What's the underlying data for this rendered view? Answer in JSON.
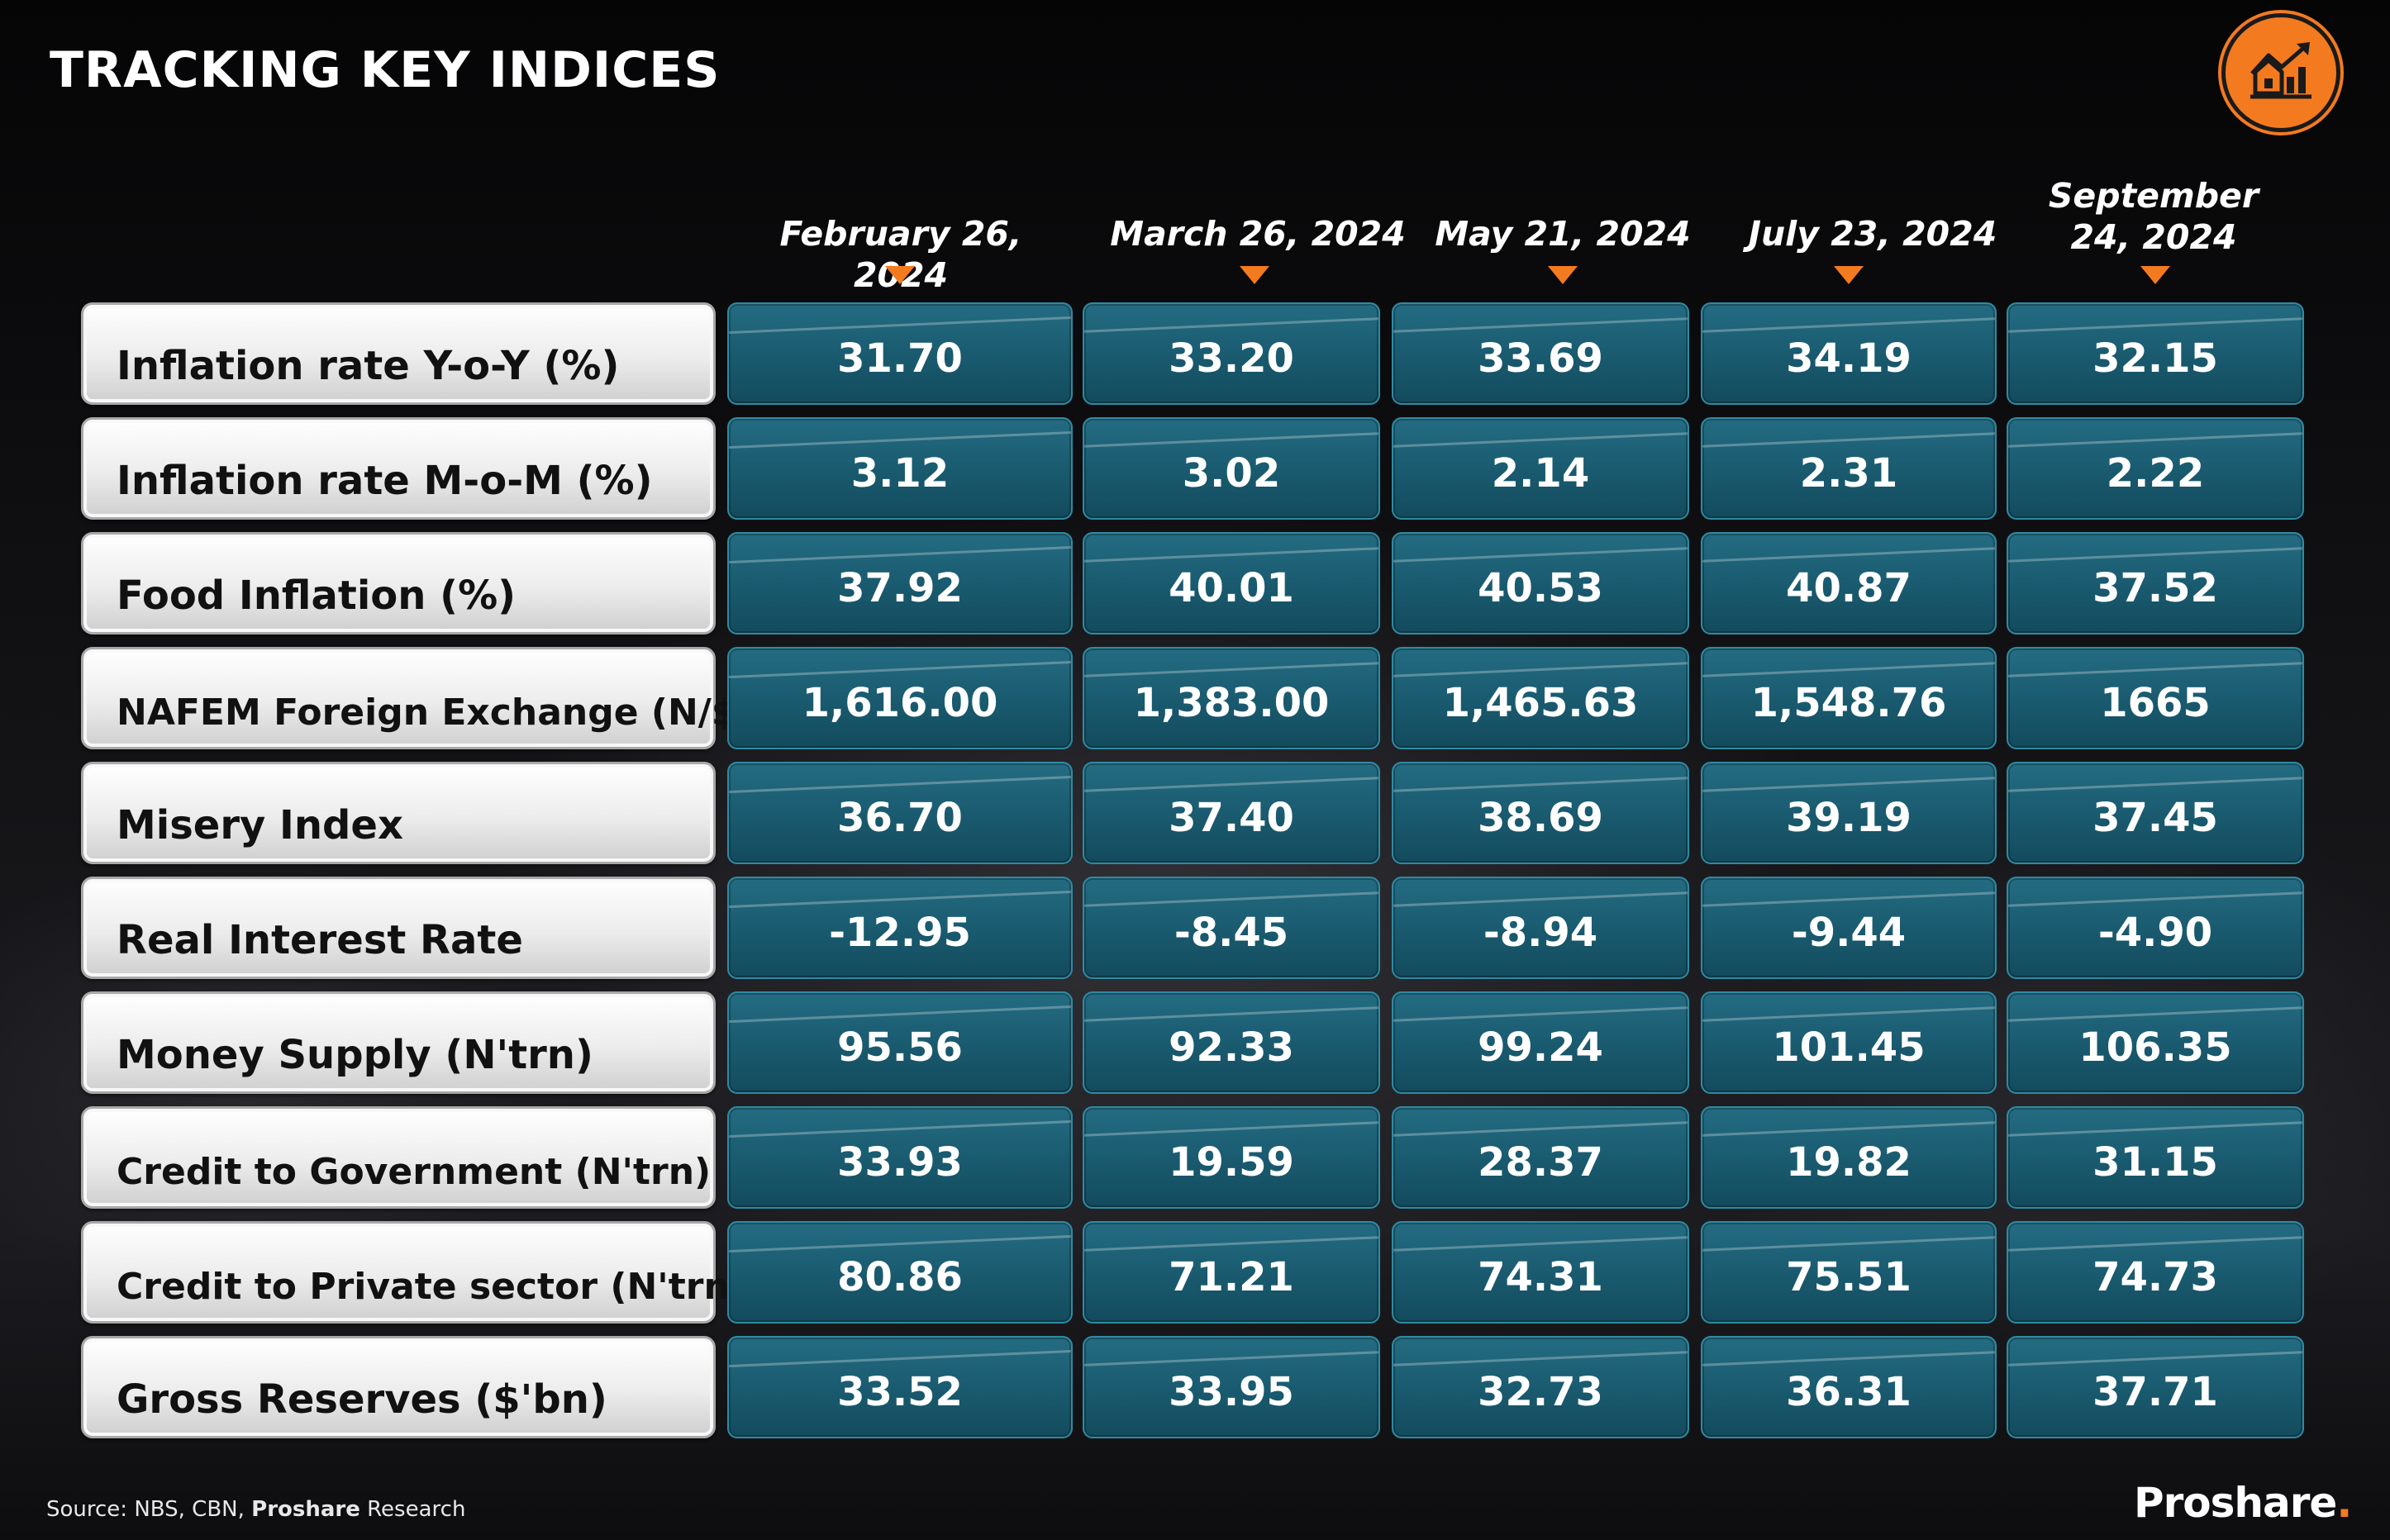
{
  "header": {
    "title": "TRACKING KEY INDICES",
    "logo_icon": "house-growth-chart-icon",
    "accent_color": "#f47a20"
  },
  "table": {
    "columns": [
      "February 26, 2024",
      "March 26, 2024",
      "May 21, 2024",
      "July 23, 2024",
      "September 24, 2024"
    ],
    "rows": [
      {
        "label": "Inflation rate Y-o-Y (%)",
        "values": [
          "31.70",
          "33.20",
          "33.69",
          "34.19",
          "32.15"
        ]
      },
      {
        "label": "Inflation rate M-o-M (%)",
        "values": [
          "3.12",
          "3.02",
          "2.14",
          "2.31",
          "2.22"
        ]
      },
      {
        "label": "Food Inflation (%)",
        "values": [
          "37.92",
          "40.01",
          "40.53",
          "40.87",
          "37.52"
        ]
      },
      {
        "label": "NAFEM Foreign Exchange (N/$)",
        "values": [
          "1,616.00",
          "1,383.00",
          "1,465.63",
          "1,548.76",
          "1665"
        ]
      },
      {
        "label": "Misery Index",
        "values": [
          "36.70",
          "37.40",
          "38.69",
          "39.19",
          "37.45"
        ]
      },
      {
        "label": "Real Interest Rate",
        "values": [
          "-12.95",
          "-8.45",
          "-8.94",
          "-9.44",
          "-4.90"
        ]
      },
      {
        "label": "Money Supply (N'trn)",
        "values": [
          "95.56",
          "92.33",
          "99.24",
          "101.45",
          "106.35"
        ]
      },
      {
        "label": "Credit to Government (N'trn)",
        "values": [
          "33.93",
          "19.59",
          "28.37",
          "19.82",
          "31.15"
        ]
      },
      {
        "label": "Credit to Private sector (N'trn)",
        "values": [
          "80.86",
          "71.21",
          "74.31",
          "75.51",
          "74.73"
        ]
      },
      {
        "label": "Gross Reserves ($'bn)",
        "values": [
          "33.52",
          "33.95",
          "32.73",
          "36.31",
          "37.71"
        ]
      }
    ]
  },
  "footer": {
    "source_prefix": "Source: NBS, CBN,",
    "source_brand": "Proshare",
    "source_suffix": "Research",
    "brand_name": "Proshare",
    "brand_dot": "."
  }
}
